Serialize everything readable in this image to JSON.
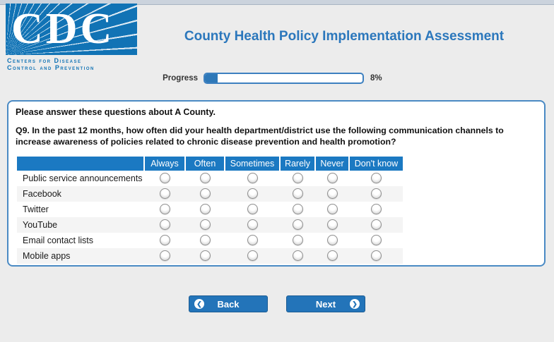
{
  "logo": {
    "acronym": "CDC",
    "caption_line1": "Centers for Disease",
    "caption_line2": "Control and Prevention",
    "box_color": "#1173b5"
  },
  "header": {
    "title": "County Health Policy Implementation Assessment",
    "title_color": "#2b77bc"
  },
  "progress": {
    "label": "Progress",
    "percent": 8,
    "percent_text": "8%",
    "bar_border_color": "#3d80c0",
    "fill_color": "#2e78b8"
  },
  "panel": {
    "intro": "Please answer these questions about A County.",
    "question_number": "Q9.",
    "question_text": " In the past 12 months, how often did your health department/district use the following communication channels to increase awareness of policies related to chronic disease prevention and health promotion?"
  },
  "table": {
    "header_bg": "#1b79c2",
    "columns": [
      "Always",
      "Often",
      "Sometimes",
      "Rarely",
      "Never",
      "Don't know"
    ],
    "rows": [
      "Public service announcements",
      "Facebook",
      "Twitter",
      "YouTube",
      "Email contact lists",
      "Mobile apps"
    ],
    "selected": null
  },
  "buttons": {
    "back_label": "Back",
    "next_label": "Next",
    "back_icon_glyph": "❮",
    "next_icon_glyph": "❯",
    "color": "#2374b9"
  }
}
